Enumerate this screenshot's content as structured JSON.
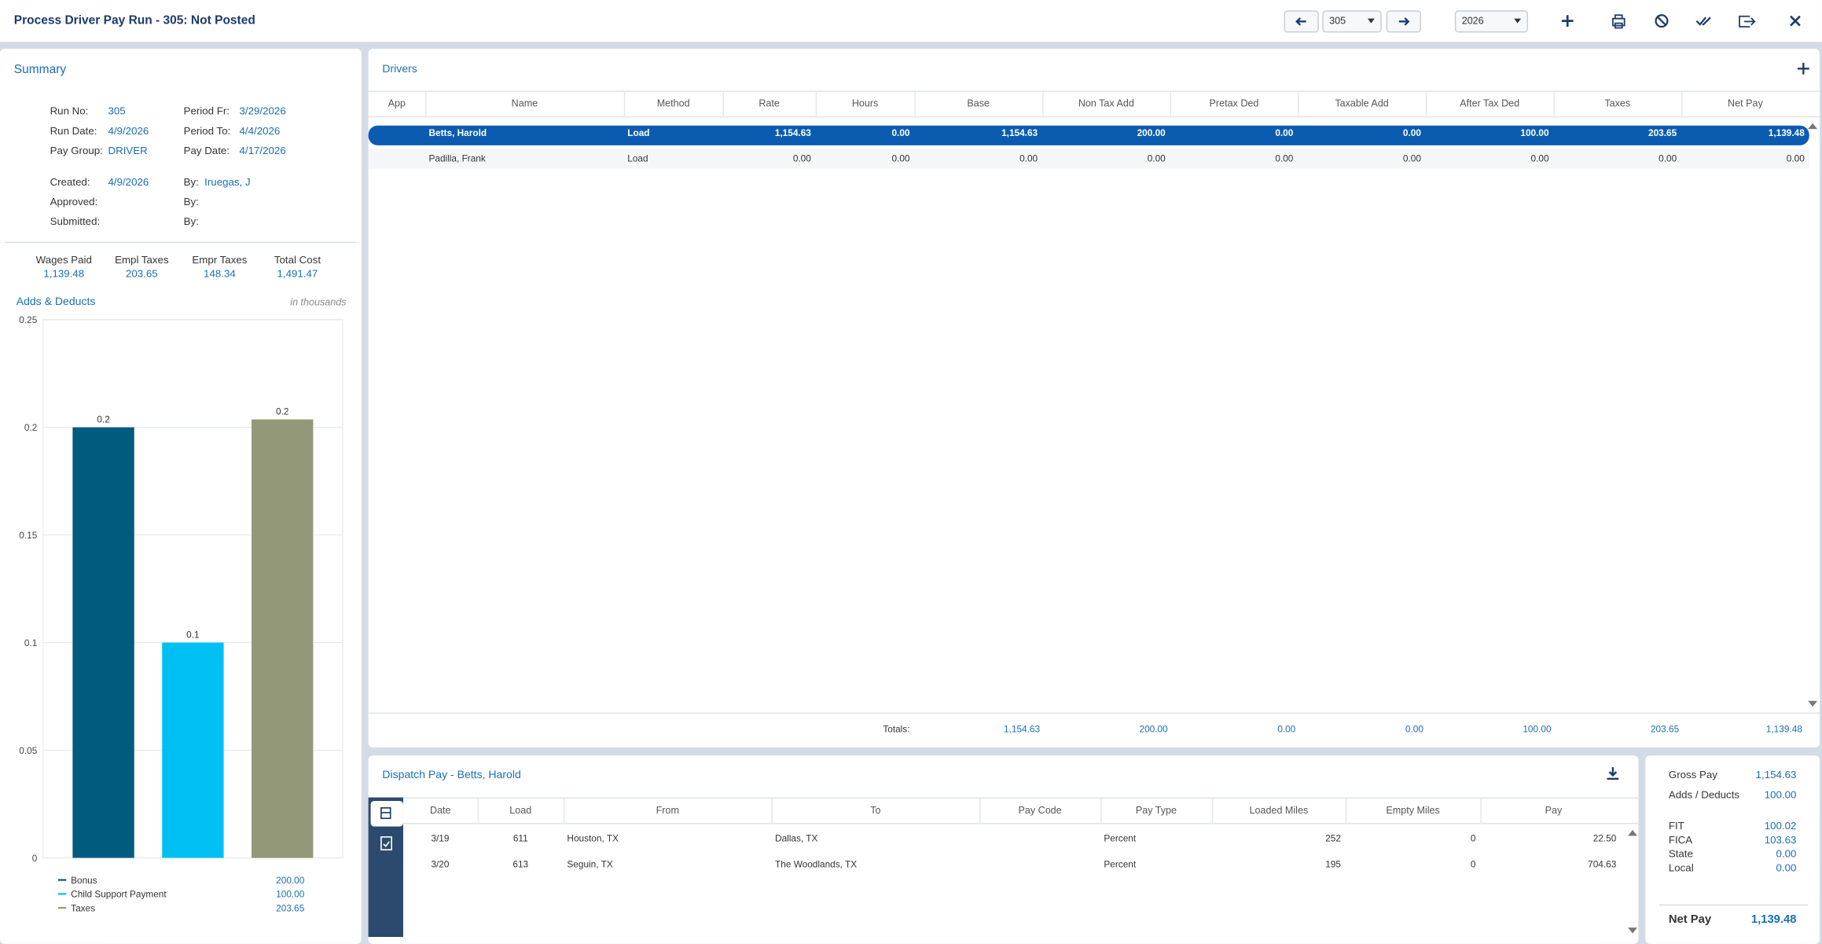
{
  "header": {
    "title": "Process Driver Pay Run - 305: Not Posted",
    "run_select": "305",
    "year_select": "2026"
  },
  "summary": {
    "title": "Summary",
    "fields": [
      [
        {
          "label": "Run No:",
          "value": "305"
        },
        {
          "label": "Period Fr:",
          "value": "3/29/2026"
        }
      ],
      [
        {
          "label": "Run Date:",
          "value": "4/9/2026"
        },
        {
          "label": "Period To:",
          "value": "4/4/2026"
        }
      ],
      [
        {
          "label": "Pay Group:",
          "value": "DRIVER"
        },
        {
          "label": "Pay Date:",
          "value": "4/17/2026"
        }
      ],
      [
        {
          "label": "Created:",
          "value": "4/9/2026"
        },
        {
          "label": "By:",
          "value": "Iruegas, J"
        }
      ],
      [
        {
          "label": "Approved:"
        },
        {
          "label": "By:"
        }
      ],
      [
        {
          "label": "Submitted:"
        },
        {
          "label": "By:"
        }
      ]
    ],
    "totals": [
      {
        "label": "Wages Paid",
        "value": "1,139.48"
      },
      {
        "label": "Empl Taxes",
        "value": "203.65"
      },
      {
        "label": "Empr Taxes",
        "value": "148.34"
      },
      {
        "label": "Total Cost",
        "value": "1,491.47"
      }
    ]
  },
  "chart_data": {
    "type": "bar",
    "title": "Adds & Deducts",
    "subtitle": "in thousands",
    "categories": [
      "Bonus",
      "Child Support Payment",
      "Taxes"
    ],
    "colors": [
      "#005b7f",
      "#00c0f3",
      "#939878"
    ],
    "values": [
      0.2,
      0.1,
      0.20365
    ],
    "value_labels": [
      "0.2",
      "0.1",
      "0.2"
    ],
    "legend_amounts": [
      "200.00",
      "100.00",
      "203.65"
    ],
    "ylim": [
      0,
      0.25
    ],
    "yticks": [
      0,
      0.05,
      0.1,
      0.15,
      0.2,
      0.25
    ],
    "grid": true
  },
  "drivers": {
    "title": "Drivers",
    "columns": [
      "App",
      "Name",
      "Method",
      "Rate",
      "Hours",
      "Base",
      "Non Tax Add",
      "Pretax Ded",
      "Taxable Add",
      "After Tax Ded",
      "Taxes",
      "Net Pay"
    ],
    "rows": [
      [
        "Betts, Harold",
        "Load",
        "1,154.63",
        "0.00",
        "1,154.63",
        "200.00",
        "0.00",
        "0.00",
        "100.00",
        "203.65",
        "1,139.48"
      ],
      [
        "Padilla, Frank",
        "Load",
        "0.00",
        "0.00",
        "0.00",
        "0.00",
        "0.00",
        "0.00",
        "0.00",
        "0.00",
        "0.00"
      ]
    ],
    "totals_label": "Totals:",
    "totals": [
      "1,154.63",
      "200.00",
      "0.00",
      "0.00",
      "100.00",
      "203.65",
      "1,139.48"
    ]
  },
  "dispatch": {
    "title": "Dispatch Pay - Betts, Harold",
    "columns": [
      "Date",
      "Load",
      "From",
      "To",
      "Pay Code",
      "Pay Type",
      "Loaded Miles",
      "Empty Miles",
      "Pay"
    ],
    "rows": [
      {
        "date": "3/19",
        "load": "611",
        "from": "Houston, TX",
        "to": "Dallas, TX",
        "pay_type": "Percent",
        "loaded_miles": "252",
        "empty_miles": "0",
        "pay": "22.50"
      },
      {
        "date": "3/20",
        "load": "613",
        "from": "Seguin, TX",
        "to": "The Woodlands, TX",
        "pay_type": "Percent",
        "loaded_miles": "195",
        "empty_miles": "0",
        "pay": "704.63"
      }
    ]
  },
  "pay_summary": {
    "items": [
      {
        "label": "Gross Pay",
        "value": "1,154.63"
      },
      {
        "label": "Adds / Deducts",
        "value": "100.00"
      },
      {
        "label": "FIT",
        "value": "100.02"
      },
      {
        "label": "FICA",
        "value": "103.63"
      },
      {
        "label": "State",
        "value": "0.00"
      },
      {
        "label": "Local",
        "value": "0.00"
      }
    ],
    "net_pay": {
      "label": "Net Pay",
      "value": "1,139.48"
    }
  }
}
